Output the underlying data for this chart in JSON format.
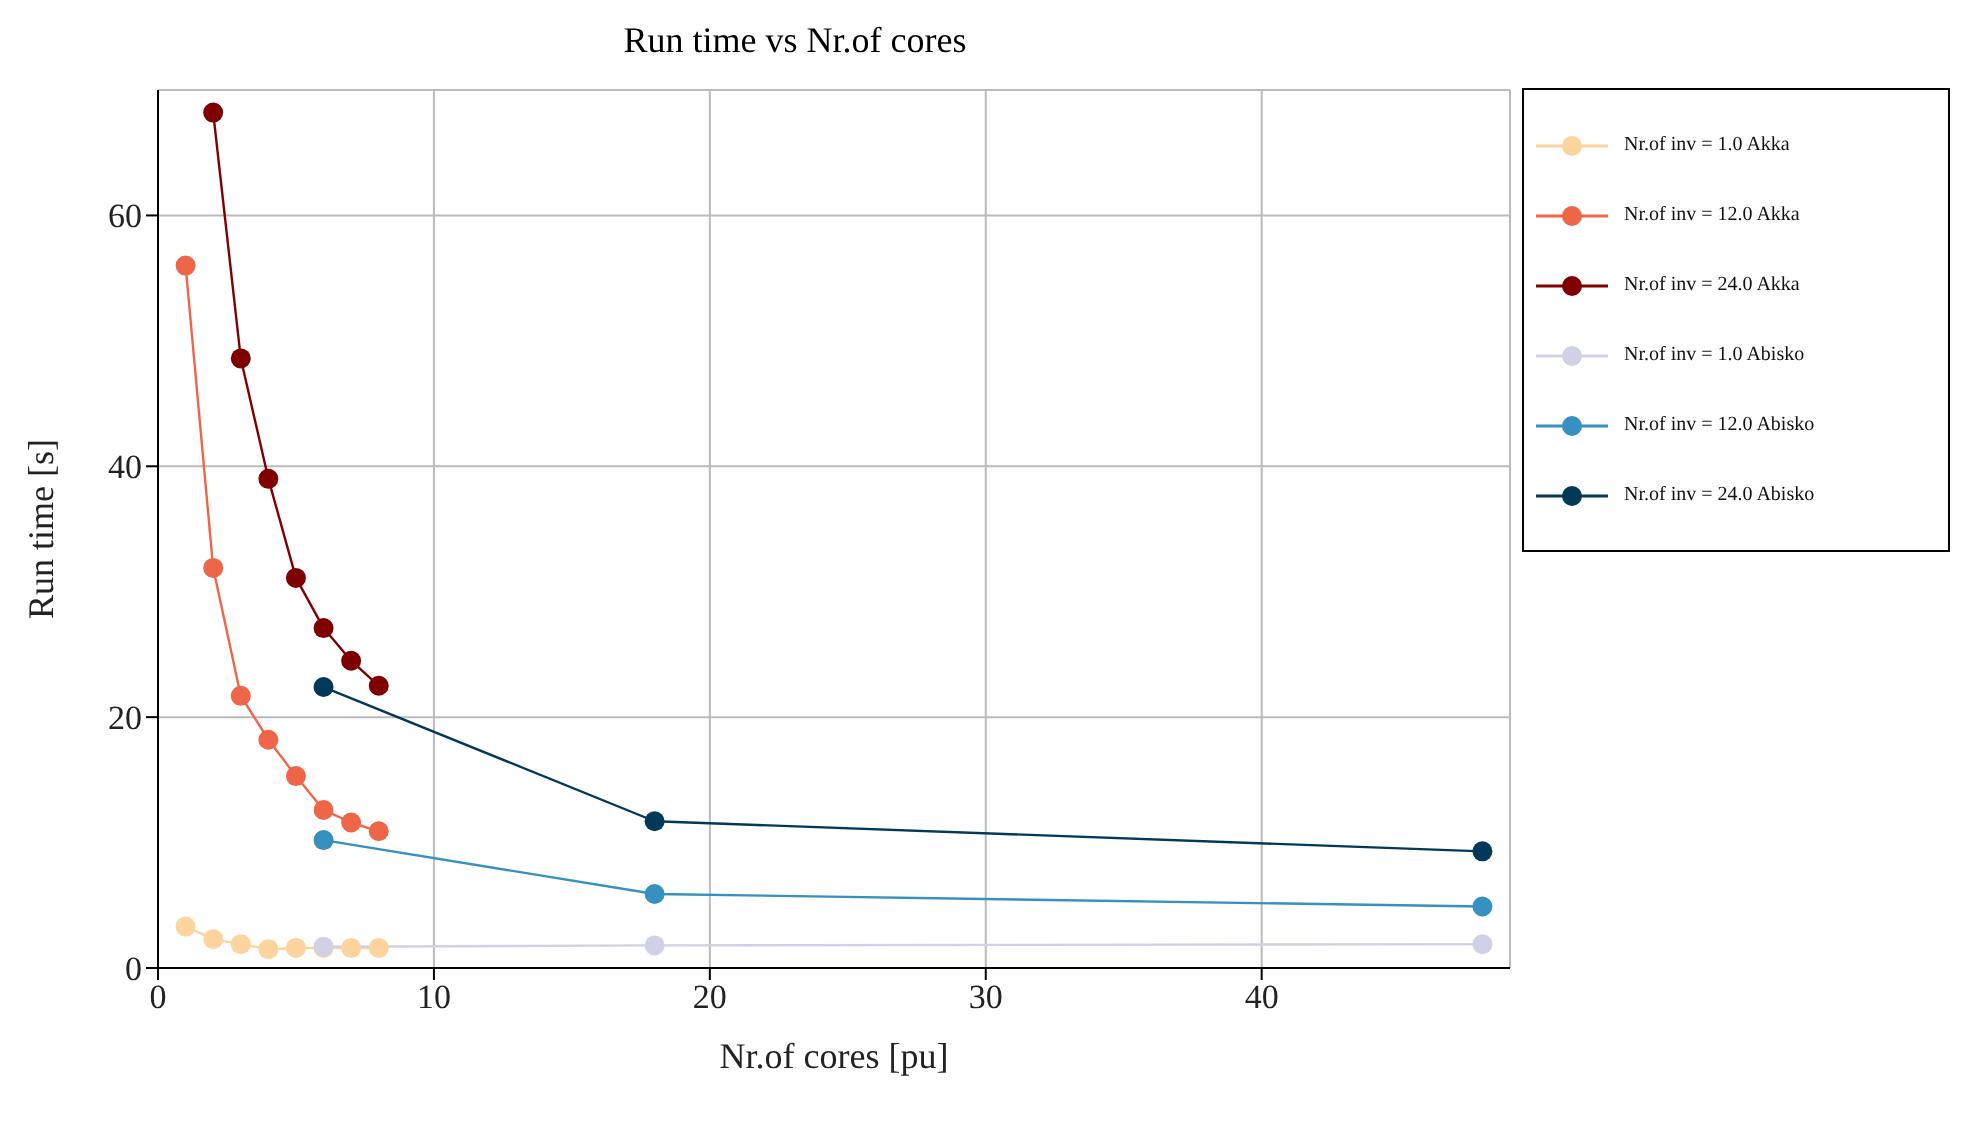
{
  "chart_data": {
    "type": "line",
    "title": "Run time vs Nr.of cores",
    "xlabel": "Nr.of cores [pu]",
    "ylabel": "Run time [s]",
    "xlim": [
      0,
      49
    ],
    "xticks": [
      0,
      10,
      20,
      30,
      40
    ],
    "ylim": [
      0,
      70
    ],
    "yticks": [
      0,
      20,
      40,
      60
    ],
    "grid": true,
    "legend": "top right",
    "marker": "circle",
    "line_style": "solid",
    "series": [
      {
        "name": "Nr.of inv = 1.0 Akka",
        "color": "#fdd49e",
        "x": [
          1,
          2,
          3,
          4,
          5,
          6,
          7,
          8
        ],
        "values": [
          3.3,
          2.3,
          1.9,
          1.5,
          1.6,
          1.6,
          1.6,
          1.6
        ]
      },
      {
        "name": "Nr.of inv = 12.0 Akka",
        "color": "#ef6548",
        "x": [
          1,
          2,
          3,
          4,
          5,
          6,
          7,
          8
        ],
        "values": [
          56,
          31.9,
          21.7,
          18.2,
          15.3,
          12.6,
          11.6,
          10.9
        ]
      },
      {
        "name": "Nr.of inv = 24.0 Akka",
        "color": "#7f0000",
        "x": [
          2,
          3,
          4,
          5,
          6,
          7,
          8
        ],
        "values": [
          68.2,
          48.6,
          39,
          31.1,
          27.1,
          24.5,
          22.5
        ]
      },
      {
        "name": "Nr.of inv = 1.0 Abisko",
        "color": "#d0d1e6",
        "x": [
          6,
          18,
          48
        ],
        "values": [
          1.7,
          1.8,
          1.9
        ]
      },
      {
        "name": "Nr.of inv = 12.0 Abisko",
        "color": "#3690c0",
        "x": [
          6,
          18,
          48
        ],
        "values": [
          10.2,
          5.9,
          4.9
        ]
      },
      {
        "name": "Nr.of inv = 24.0 Abisko",
        "color": "#023858",
        "x": [
          6,
          18,
          48
        ],
        "values": [
          22.4,
          11.7,
          9.3
        ]
      }
    ]
  }
}
